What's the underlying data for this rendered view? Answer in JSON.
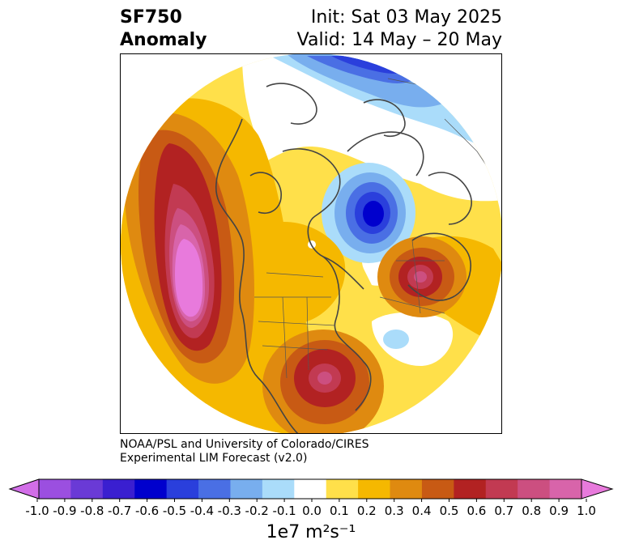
{
  "title": {
    "variable": "SF750",
    "kind": "Anomaly",
    "init": "Init: Sat 03 May 2025",
    "valid": "Valid: 14 May – 20 May"
  },
  "credit": {
    "line1": "NOAA/PSL and University of Colorado/CIRES",
    "line2": "Experimental LIM Forecast (v2.0)"
  },
  "colorbar": {
    "unit_text": "1e7 m²s⁻¹",
    "ticks": [
      "-1.0",
      "-0.9",
      "-0.8",
      "-0.7",
      "-0.6",
      "-0.5",
      "-0.4",
      "-0.3",
      "-0.2",
      "-0.1",
      "0.0",
      "0.1",
      "0.2",
      "0.3",
      "0.4",
      "0.5",
      "0.6",
      "0.7",
      "0.8",
      "0.9",
      "1.0"
    ],
    "colors": [
      "#9b4fe0",
      "#6a3ad6",
      "#3a1fd0",
      "#0000cd",
      "#2a3fdc",
      "#4a6fe4",
      "#78aeee",
      "#aadcfa",
      "#ffffff",
      "#ffe04a",
      "#f5b800",
      "#df8a10",
      "#c85a14",
      "#b22222",
      "#c23a52",
      "#cc4f80",
      "#d864aa"
    ],
    "extend_low_color": "#d26ee8",
    "extend_high_color": "#e87adc"
  },
  "map": {
    "projection": "polar stereographic (Northern Hemisphere)",
    "colors": {
      "yellow": "#ffe04a",
      "gold": "#f5b800",
      "orange": "#df8a10",
      "darkorange": "#c85a14",
      "red": "#b22222",
      "crimson": "#c23a52",
      "rose": "#cc4f80",
      "pink": "#d864aa",
      "violet": "#e87adc",
      "lightblue": "#aadcfa",
      "blue3": "#78aeee",
      "blue4": "#4a6fe4",
      "blue5": "#2a3fdc",
      "navy": "#0000cd",
      "coast": "#444444"
    }
  }
}
